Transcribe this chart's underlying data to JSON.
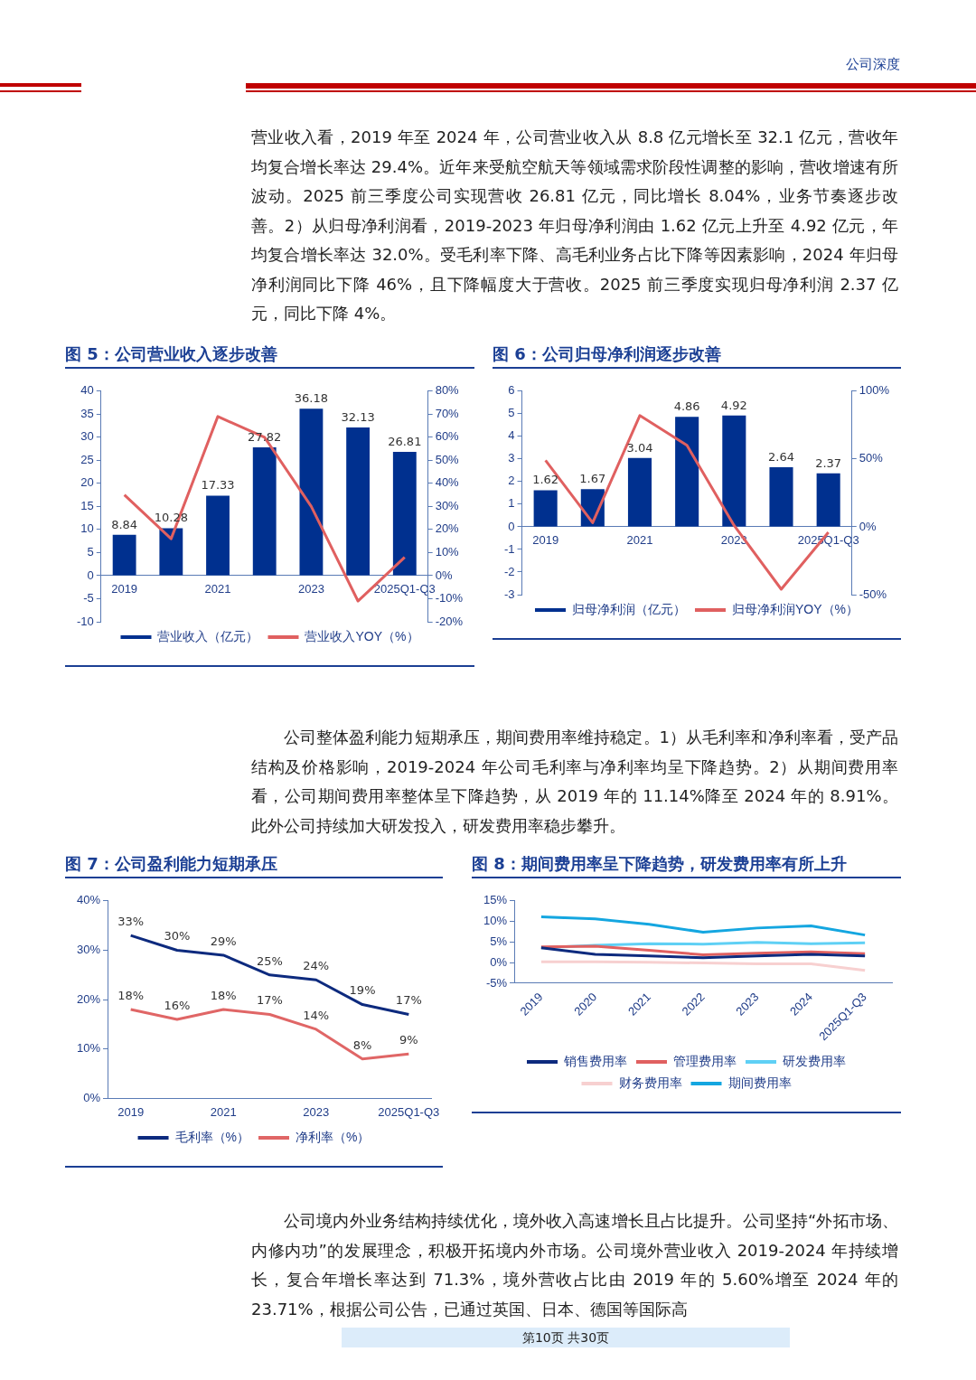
{
  "chart_data": [
    {
      "type": "bar",
      "title": "图 5：公司营业收入逐步改善",
      "categories": [
        "2019",
        null,
        "2021",
        null,
        "2023",
        null,
        "2025Q1-Q3"
      ],
      "ylim": [
        -10,
        40
      ],
      "yticks": [
        -10,
        -5,
        0,
        5,
        10,
        15,
        20,
        25,
        30,
        35,
        40
      ],
      "y2lim": [
        -20,
        80
      ],
      "y2ticks": [
        {
          "value": -20,
          "label": "-20%"
        },
        {
          "value": -10,
          "label": "-10%"
        },
        {
          "value": 0,
          "label": "0%"
        },
        {
          "value": 10,
          "label": "10%"
        },
        {
          "value": 20,
          "label": "20%"
        },
        {
          "value": 30,
          "label": "30%"
        },
        {
          "value": 40,
          "label": "40%"
        },
        {
          "value": 50,
          "label": "50%"
        },
        {
          "value": 60,
          "label": "60%"
        },
        {
          "value": 70,
          "label": "70%"
        },
        {
          "value": 80,
          "label": "80%"
        }
      ],
      "legend": "bottom",
      "annotations": [
        "公司深度",
        "营业收入看，2019 年至 2024 年，公司营业收入从 8.8 亿元增长至 32.1 亿元，营收年均复合增长率达 29.4%。近年来受航空航天等领域需求阶段性调整的影响，营收增速有所波动。2025 前三季度公司实现营收 26.81 亿元，同比增长 8.04%，业务节奏逐步改善。2）从归母净利润看，2019-2023 年归母净利润由 1.62 亿元上升至 4.92 亿元，年均复合增长率达 32.0%。受毛利率下降、高毛利业务占比下降等因素影响，2024 年归母净利润同比下降 46%，且下降幅度大于营收。2025 前三季度实现归母净利润 2.37 亿元，同比下降 4%。"
      ],
      "series": [
        {
          "name": "营业收入（亿元）",
          "type": "bar",
          "color": "#00308f",
          "values": [
            8.84,
            10.28,
            17.33,
            27.82,
            36.18,
            32.13,
            26.81
          ],
          "value_labels": [
            "8.84",
            "10.28",
            "17.33",
            "27.82",
            "36.18",
            "32.13",
            "26.81"
          ]
        },
        {
          "name": "营业收入YOY（%）",
          "type": "line",
          "axis": "y2",
          "color": "#e06060",
          "values": [
            35,
            16,
            69,
            60,
            30,
            -11,
            8
          ]
        }
      ]
    },
    {
      "type": "bar",
      "title": "图 6：公司归母净利润逐步改善",
      "categories": [
        "2019",
        null,
        "2021",
        null,
        "2023",
        null,
        "2025Q1-Q3"
      ],
      "ylim": [
        -3,
        6
      ],
      "yticks": [
        -3,
        -2,
        -1,
        0,
        1,
        2,
        3,
        4,
        5,
        6
      ],
      "y2lim": [
        -50,
        100
      ],
      "y2ticks": [
        {
          "value": -50,
          "label": "-50%"
        },
        {
          "value": 0,
          "label": "0%"
        },
        {
          "value": 50,
          "label": "50%"
        },
        {
          "value": 100,
          "label": "100%"
        }
      ],
      "legend": "bottom",
      "series": [
        {
          "name": "归母净利润（亿元）",
          "type": "bar",
          "color": "#00308f",
          "values": [
            1.62,
            1.67,
            3.04,
            4.86,
            4.92,
            2.64,
            2.37
          ],
          "value_labels": [
            "1.62",
            "1.67",
            "3.04",
            "4.86",
            "4.92",
            "2.64",
            "2.37"
          ]
        },
        {
          "name": "归母净利润YOY（%）",
          "type": "line",
          "axis": "y2",
          "color": "#e06060",
          "values": [
            49,
            3,
            82,
            60,
            1,
            -46,
            -4
          ]
        }
      ]
    },
    {
      "type": "line",
      "title": "图 7：公司盈利能力短期承压",
      "categories": [
        "2019",
        null,
        "2021",
        null,
        "2023",
        null,
        "2025Q1-Q3"
      ],
      "ylim": [
        0,
        40
      ],
      "yticks": [
        {
          "value": 0,
          "label": "0%"
        },
        {
          "value": 10,
          "label": "10%"
        },
        {
          "value": 20,
          "label": "20%"
        },
        {
          "value": 30,
          "label": "30%"
        },
        {
          "value": 40,
          "label": "40%"
        }
      ],
      "legend": "bottom",
      "annotations": [
        "公司整体盈利能力短期承压，期间费用率维持稳定。1）从毛利率和净利率看，受产品结构及价格影响，2019-2024 年公司毛利率与净利率均呈下降趋势。2）从期间费用率看，公司期间费用率整体呈下降趋势，从 2019 年的 11.14%降至 2024 年的 8.91%。此外公司持续加大研发投入，研发费用率稳步攀升。"
      ],
      "series": [
        {
          "name": "毛利率（%）",
          "color": "#0d2a7e",
          "values": [
            33,
            30,
            29,
            25,
            24,
            19,
            17
          ],
          "value_labels": [
            "33%",
            "30%",
            "29%",
            "25%",
            "24%",
            "19%",
            "17%"
          ]
        },
        {
          "name": "净利率（%）",
          "color": "#e06666",
          "values": [
            18,
            16,
            18,
            17,
            14,
            8,
            9
          ],
          "value_labels": [
            "18%",
            "16%",
            "18%",
            "17%",
            "14%",
            "8%",
            "9%"
          ]
        }
      ]
    },
    {
      "type": "line",
      "title": "图 8：期间费用率呈下降趋势，研发费用率有所上升",
      "categories": [
        "2019",
        "2020",
        "2021",
        "2022",
        "2023",
        "2024",
        "2025Q1-Q3"
      ],
      "ylim": [
        -5,
        15
      ],
      "yticks": [
        {
          "value": -5,
          "label": "-5%"
        },
        {
          "value": 0,
          "label": "0%"
        },
        {
          "value": 5,
          "label": "5%"
        },
        {
          "value": 10,
          "label": "10%"
        },
        {
          "value": 15,
          "label": "15%"
        }
      ],
      "legend": "bottom",
      "annotations": [
        "公司境内外业务结构持续优化，境外收入高速增长且占比提升。公司坚持“外拓市场、内修内功”的发展理念，积极开拓境内外市场。公司境外营业收入 2019-2024 年持续增长，复合年增长率达到 71.3%，境外营收占比由 2019 年的 5.60%增至 2024 年的 23.71%，根据公司公告，已通过英国、日本、德国等国际高",
        "第10页 共30页"
      ],
      "series": [
        {
          "name": "销售费用率",
          "color": "#0d2a7e",
          "values": [
            3.6,
            2.0,
            1.6,
            1.2,
            1.6,
            2.0,
            1.6
          ]
        },
        {
          "name": "管理费用率",
          "color": "#e06060",
          "values": [
            3.8,
            4.0,
            3.0,
            1.9,
            2.3,
            2.6,
            2.2
          ]
        },
        {
          "name": "研发费用率",
          "color": "#5fd0f5",
          "values": [
            3.6,
            4.2,
            4.6,
            4.5,
            4.9,
            4.6,
            4.8
          ]
        },
        {
          "name": "财务费用率",
          "color": "#f7d0d0",
          "values": [
            0.2,
            0.2,
            0.1,
            -0.1,
            -0.3,
            -0.3,
            -1.9
          ]
        },
        {
          "name": "期间费用率",
          "color": "#14a6e0",
          "values": [
            11.1,
            10.6,
            9.3,
            7.4,
            8.4,
            8.9,
            6.7
          ]
        }
      ]
    }
  ]
}
